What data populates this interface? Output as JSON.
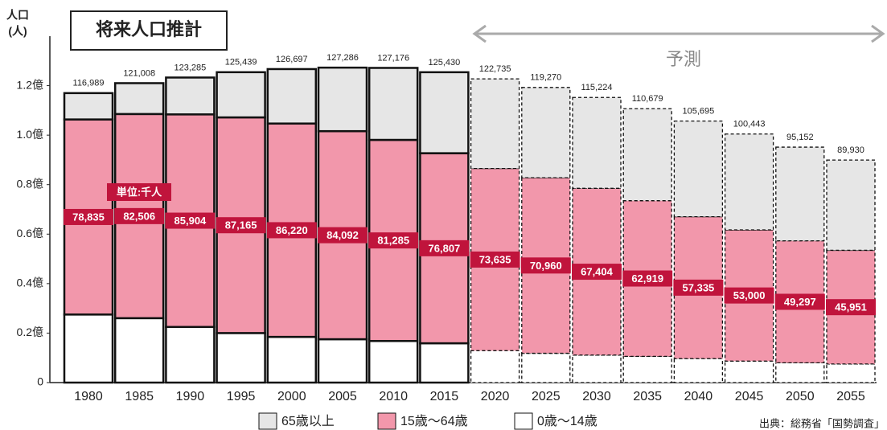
{
  "chart_data": {
    "type": "stacked_bar",
    "title": "将来人口推計",
    "y_label": [
      "人口",
      "(人)"
    ],
    "unit_note": "単位:千人",
    "projection_label": "予測",
    "projection_start": "2020",
    "source": "出典：総務省「国勢調査」",
    "categories": [
      "1980",
      "1985",
      "1990",
      "1995",
      "2000",
      "2005",
      "2010",
      "2015",
      "2020",
      "2025",
      "2030",
      "2035",
      "2040",
      "2045",
      "2050",
      "2055"
    ],
    "total_labels": [
      "116,989",
      "121,008",
      "123,285",
      "125,439",
      "126,697",
      "127,286",
      "127,176",
      "125,430",
      "122,735",
      "119,270",
      "115,224",
      "110,679",
      "105,695",
      "100,443",
      "95,152",
      "89,930"
    ],
    "series": [
      {
        "name": "0歳～14歳",
        "color": "#ffffff",
        "values": [
          27507,
          26033,
          22486,
          20014,
          18472,
          17521,
          16803,
          15887,
          12900,
          11840,
          11100,
          10600,
          9700,
          8700,
          8000,
          7500
        ]
      },
      {
        "name": "15歳～64歳",
        "color": "#f297ab",
        "values": [
          78835,
          82506,
          85904,
          87165,
          86220,
          84092,
          81285,
          76807,
          73635,
          70960,
          67404,
          62919,
          57335,
          53000,
          49297,
          45951
        ],
        "value_labels": [
          "78,835",
          "82,506",
          "85,904",
          "87,165",
          "86,220",
          "84,092",
          "81,285",
          "76,807",
          "73,635",
          "70,960",
          "67,404",
          "62,919",
          "57,335",
          "53,000",
          "49,297",
          "45,951"
        ]
      },
      {
        "name": "65歳以上",
        "color": "#e6e6e6",
        "values": [
          10647,
          12469,
          14895,
          18260,
          22005,
          25673,
          29088,
          32736,
          36200,
          36470,
          36720,
          37160,
          38660,
          38743,
          37855,
          36479
        ]
      }
    ],
    "ylim": [
      0,
      140000
    ],
    "yticks": [
      {
        "value": 0,
        "label": "0"
      },
      {
        "value": 20000,
        "label": "0.2億"
      },
      {
        "value": 40000,
        "label": "0.4億"
      },
      {
        "value": 60000,
        "label": "0.6億"
      },
      {
        "value": 80000,
        "label": "0.8億"
      },
      {
        "value": 100000,
        "label": "1.0億"
      },
      {
        "value": 120000,
        "label": "1.2億"
      }
    ]
  }
}
